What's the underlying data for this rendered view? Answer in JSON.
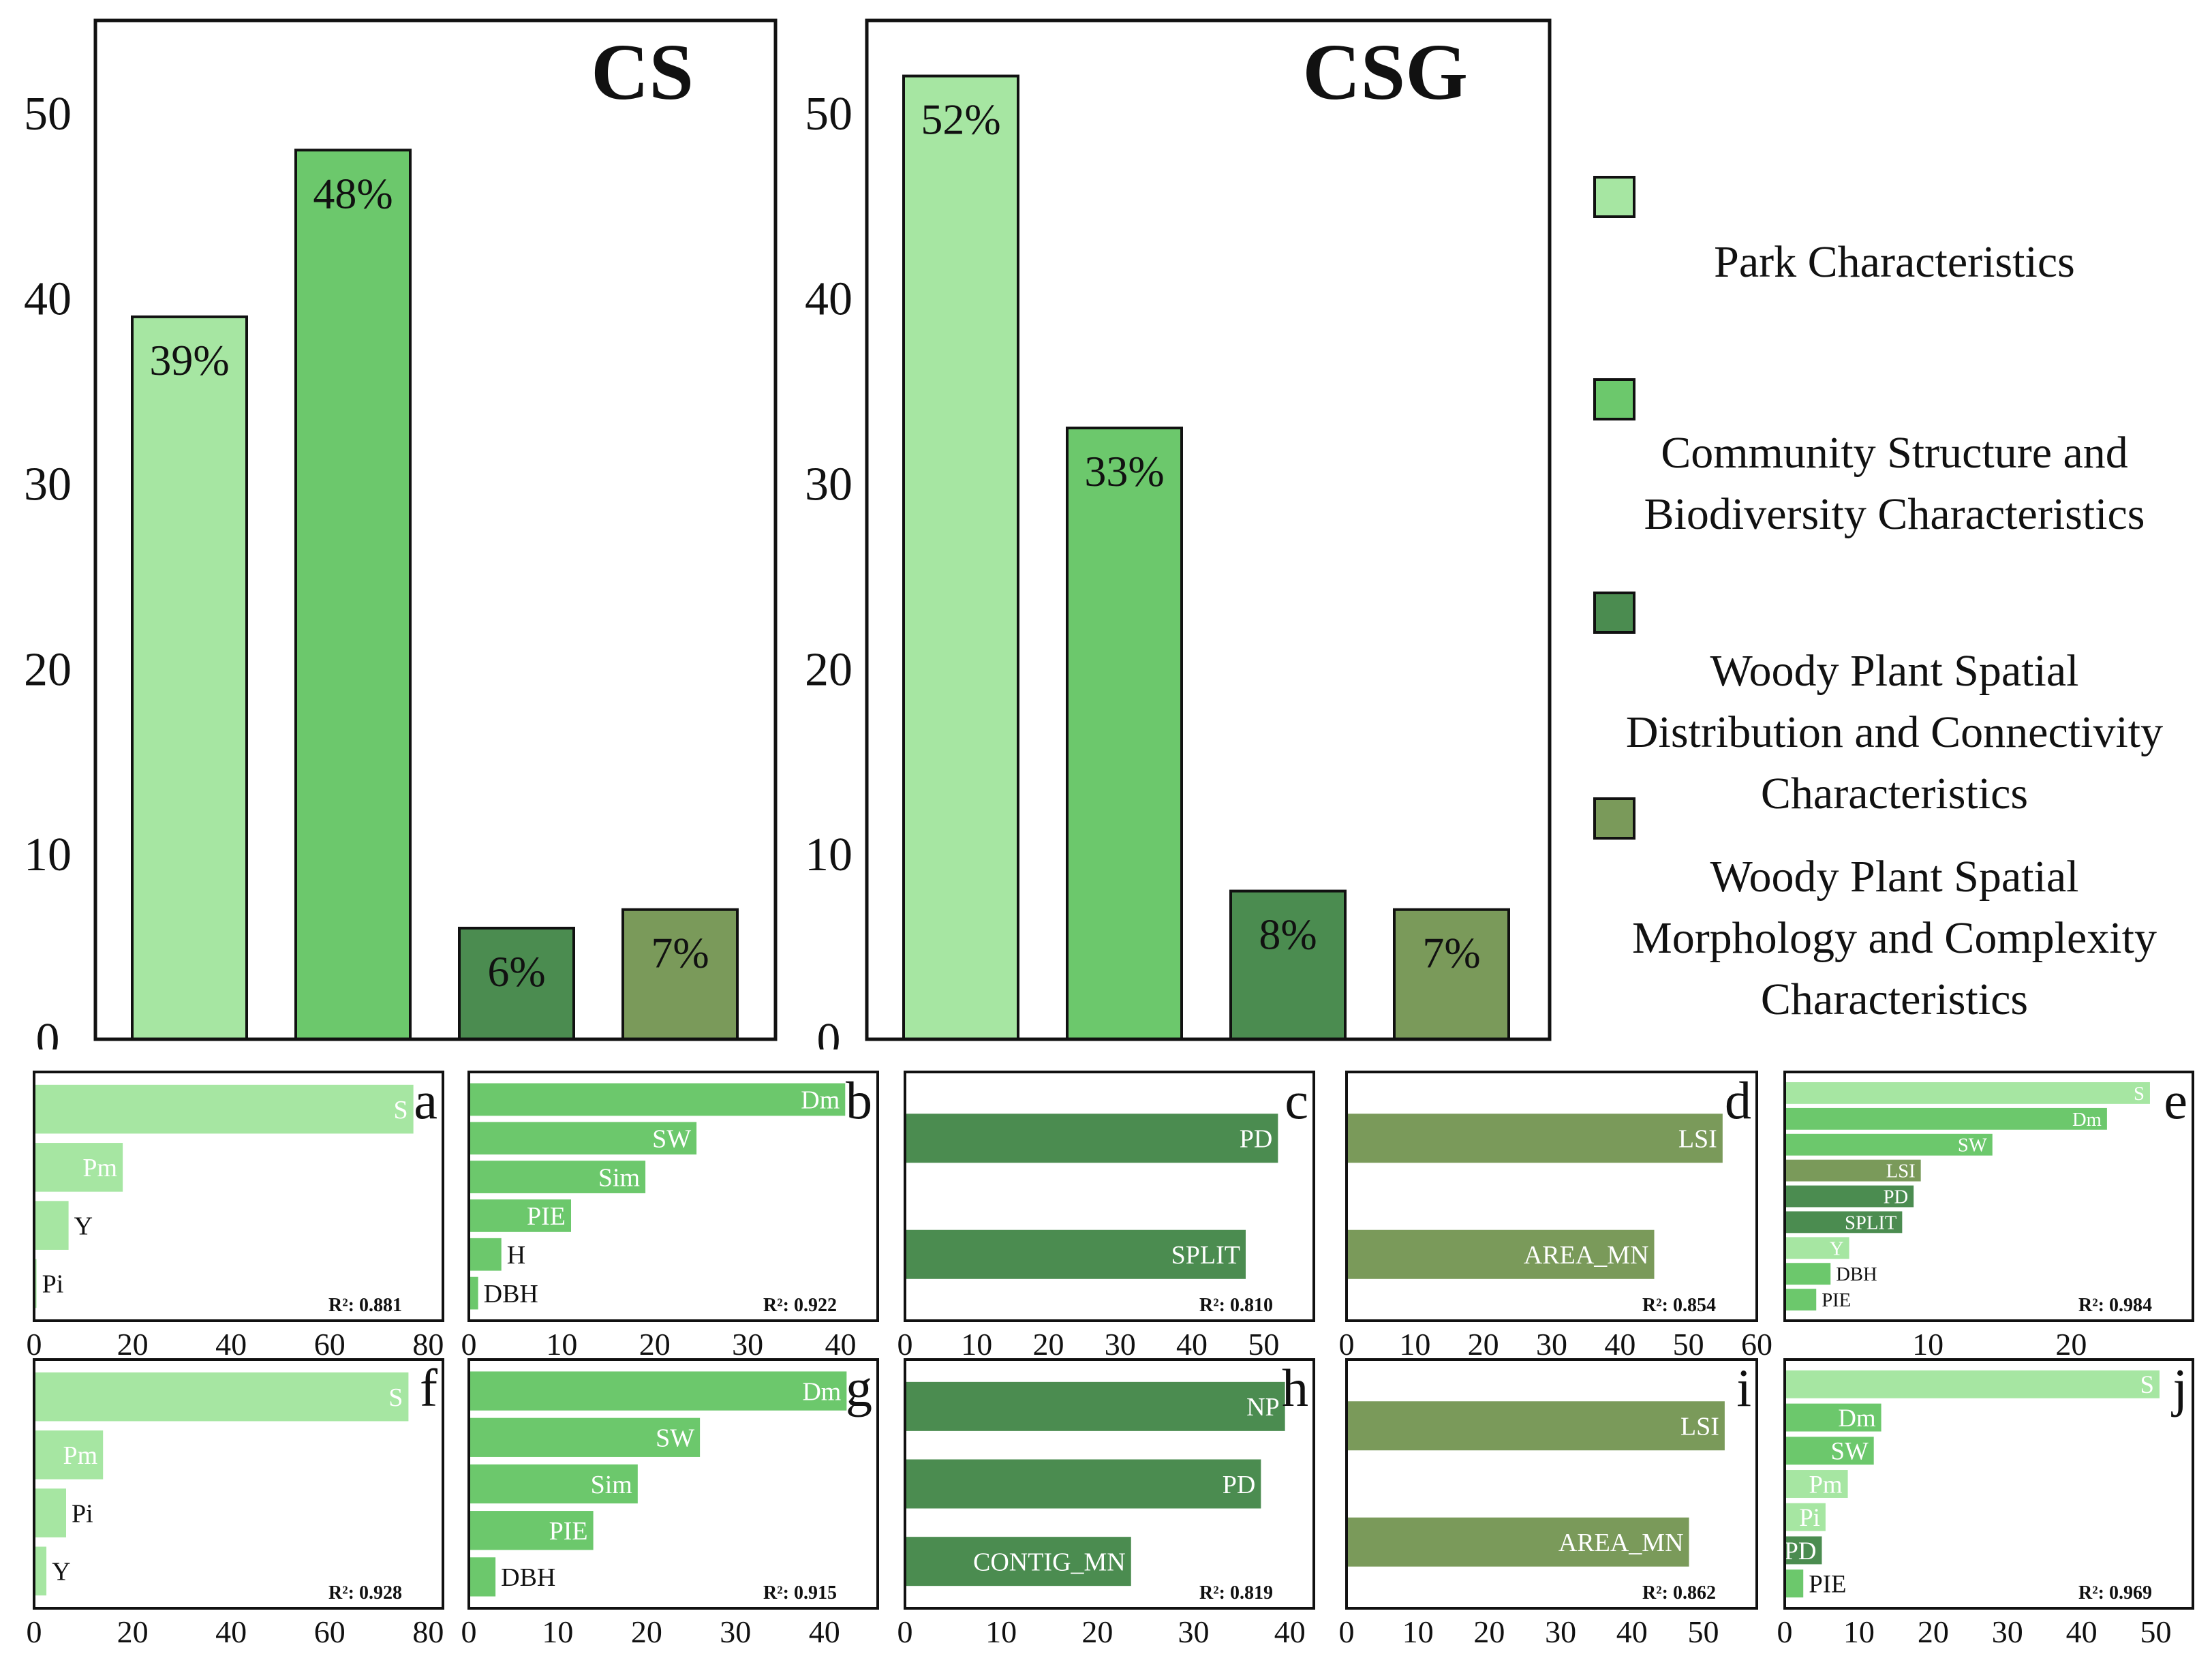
{
  "colors": {
    "park": "#a6e6a2",
    "community": "#6cc86c",
    "distribution": "#4b8c50",
    "morphology": "#7a9a5a",
    "axis": "#111111"
  },
  "legend": {
    "items": [
      {
        "label": "Park Characteristics",
        "color_key": "park"
      },
      {
        "label": "Community Structure and\nBiodiversity Characteristics",
        "color_key": "community"
      },
      {
        "label": "Woody Plant Spatial\nDistribution and Connectivity\nCharacteristics",
        "color_key": "distribution"
      },
      {
        "label": "Woody Plant Spatial\nMorphology and Complexity\nCharacteristics",
        "color_key": "morphology"
      }
    ]
  },
  "chart_data": [
    {
      "id": "cs",
      "type": "bar",
      "title": "CS",
      "categories": [
        "Park Characteristics",
        "Community Structure and Biodiversity Characteristics",
        "Woody Plant Spatial Distribution and Connectivity Characteristics",
        "Woody Plant Spatial Morphology and Complexity Characteristics"
      ],
      "values": [
        39,
        48,
        6,
        7
      ],
      "value_labels": [
        "39%",
        "48%",
        "6%",
        "7%"
      ],
      "colors": [
        "park",
        "community",
        "distribution",
        "morphology"
      ],
      "ylim": [
        0,
        55
      ],
      "yticks": [
        0,
        10,
        20,
        30,
        40,
        50
      ]
    },
    {
      "id": "csg",
      "type": "bar",
      "title": "CSG",
      "categories": [
        "Park Characteristics",
        "Community Structure and Biodiversity Characteristics",
        "Woody Plant Spatial Distribution and Connectivity Characteristics",
        "Woody Plant Spatial Morphology and Complexity Characteristics"
      ],
      "values": [
        52,
        33,
        8,
        7
      ],
      "value_labels": [
        "52%",
        "33%",
        "8%",
        "7%"
      ],
      "colors": [
        "park",
        "community",
        "distribution",
        "morphology"
      ],
      "ylim": [
        0,
        55
      ],
      "yticks": [
        0,
        10,
        20,
        30,
        40,
        50
      ]
    },
    {
      "id": "a",
      "type": "bar",
      "orientation": "horizontal",
      "letter": "a",
      "r2": "R²: 0.881",
      "xlim": [
        0,
        83
      ],
      "xticks": [
        0,
        20,
        40,
        60,
        80
      ],
      "bars": [
        {
          "label": "S",
          "value": 77,
          "color_key": "park",
          "label_pos": "inside"
        },
        {
          "label": "Pm",
          "value": 18,
          "color_key": "park",
          "label_pos": "inside"
        },
        {
          "label": "Y",
          "value": 7,
          "color_key": "park",
          "label_pos": "outside"
        },
        {
          "label": "Pi",
          "value": 0.5,
          "color_key": "park",
          "label_pos": "outside"
        }
      ]
    },
    {
      "id": "b",
      "type": "bar",
      "orientation": "horizontal",
      "letter": "b",
      "r2": "R²: 0.922",
      "xlim": [
        0,
        44
      ],
      "xticks": [
        0,
        10,
        20,
        30,
        40
      ],
      "bars": [
        {
          "label": "Dm",
          "value": 40.5,
          "color_key": "community",
          "label_pos": "inside"
        },
        {
          "label": "SW",
          "value": 24.5,
          "color_key": "community",
          "label_pos": "inside"
        },
        {
          "label": "Sim",
          "value": 19,
          "color_key": "community",
          "label_pos": "inside"
        },
        {
          "label": "PIE",
          "value": 11,
          "color_key": "community",
          "label_pos": "inside"
        },
        {
          "label": "H",
          "value": 3.5,
          "color_key": "community",
          "label_pos": "outside"
        },
        {
          "label": "DBH",
          "value": 1,
          "color_key": "community",
          "label_pos": "outside"
        }
      ]
    },
    {
      "id": "c",
      "type": "bar",
      "orientation": "horizontal",
      "letter": "c",
      "r2": "R²: 0.810",
      "xlim": [
        0,
        57
      ],
      "xticks": [
        0,
        10,
        20,
        30,
        40,
        50
      ],
      "bars": [
        {
          "label": "PD",
          "value": 52,
          "color_key": "distribution",
          "label_pos": "inside"
        },
        {
          "label": "SPLIT",
          "value": 47.5,
          "color_key": "distribution",
          "label_pos": "inside"
        }
      ]
    },
    {
      "id": "d",
      "type": "bar",
      "orientation": "horizontal",
      "letter": "d",
      "r2": "R²: 0.854",
      "xlim": [
        0,
        60
      ],
      "xticks": [
        0,
        10,
        20,
        30,
        40,
        50,
        60
      ],
      "bars": [
        {
          "label": "LSI",
          "value": 55,
          "color_key": "morphology",
          "label_pos": "inside"
        },
        {
          "label": "AREA_MN",
          "value": 45,
          "color_key": "morphology",
          "label_pos": "inside"
        }
      ]
    },
    {
      "id": "e",
      "type": "bar",
      "orientation": "horizontal",
      "letter": "e",
      "r2": "R²: 0.984",
      "xlim": [
        0,
        28.5
      ],
      "xticks": [
        10,
        20
      ],
      "bars": [
        {
          "label": "S",
          "value": 25.5,
          "color_key": "park",
          "label_pos": "inside"
        },
        {
          "label": "Dm",
          "value": 22.5,
          "color_key": "community",
          "label_pos": "inside"
        },
        {
          "label": "SW",
          "value": 14.5,
          "color_key": "community",
          "label_pos": "inside"
        },
        {
          "label": "LSI",
          "value": 9.5,
          "color_key": "morphology",
          "label_pos": "inside"
        },
        {
          "label": "PD",
          "value": 9,
          "color_key": "distribution",
          "label_pos": "inside"
        },
        {
          "label": "SPLIT",
          "value": 8.2,
          "color_key": "distribution",
          "label_pos": "inside"
        },
        {
          "label": "Y",
          "value": 4.5,
          "color_key": "park",
          "label_pos": "inside"
        },
        {
          "label": "DBH",
          "value": 3.2,
          "color_key": "community",
          "label_pos": "outside"
        },
        {
          "label": "PIE",
          "value": 2.2,
          "color_key": "community",
          "label_pos": "outside"
        }
      ]
    },
    {
      "id": "f",
      "type": "bar",
      "orientation": "horizontal",
      "letter": "f",
      "r2": "R²: 0.928",
      "xlim": [
        0,
        83
      ],
      "xticks": [
        0,
        20,
        40,
        60,
        80
      ],
      "bars": [
        {
          "label": "S",
          "value": 76,
          "color_key": "park",
          "label_pos": "inside"
        },
        {
          "label": "Pm",
          "value": 14,
          "color_key": "park",
          "label_pos": "inside"
        },
        {
          "label": "Pi",
          "value": 6.5,
          "color_key": "park",
          "label_pos": "outside"
        },
        {
          "label": "Y",
          "value": 2.5,
          "color_key": "park",
          "label_pos": "outside"
        }
      ]
    },
    {
      "id": "g",
      "type": "bar",
      "orientation": "horizontal",
      "letter": "g",
      "r2": "R²: 0.915",
      "xlim": [
        0,
        46
      ],
      "xticks": [
        0,
        10,
        20,
        30,
        40
      ],
      "bars": [
        {
          "label": "Dm",
          "value": 42.5,
          "color_key": "community",
          "label_pos": "inside"
        },
        {
          "label": "SW",
          "value": 26,
          "color_key": "community",
          "label_pos": "inside"
        },
        {
          "label": "Sim",
          "value": 19,
          "color_key": "community",
          "label_pos": "inside"
        },
        {
          "label": "PIE",
          "value": 14,
          "color_key": "community",
          "label_pos": "inside"
        },
        {
          "label": "DBH",
          "value": 3,
          "color_key": "community",
          "label_pos": "outside"
        }
      ]
    },
    {
      "id": "h",
      "type": "bar",
      "orientation": "horizontal",
      "letter": "h",
      "r2": "R²: 0.819",
      "xlim": [
        0,
        42.5
      ],
      "xticks": [
        0,
        10,
        20,
        30,
        40
      ],
      "bars": [
        {
          "label": "NP",
          "value": 39.5,
          "color_key": "distribution",
          "label_pos": "inside"
        },
        {
          "label": "PD",
          "value": 37,
          "color_key": "distribution",
          "label_pos": "inside"
        },
        {
          "label": "CONTIG_MN",
          "value": 23.5,
          "color_key": "distribution",
          "label_pos": "inside"
        }
      ]
    },
    {
      "id": "i",
      "type": "bar",
      "orientation": "horizontal",
      "letter": "i",
      "r2": "R²: 0.862",
      "xlim": [
        0,
        57.5
      ],
      "xticks": [
        0,
        10,
        20,
        30,
        40,
        50
      ],
      "bars": [
        {
          "label": "LSI",
          "value": 53,
          "color_key": "morphology",
          "label_pos": "inside"
        },
        {
          "label": "AREA_MN",
          "value": 48,
          "color_key": "morphology",
          "label_pos": "inside"
        }
      ]
    },
    {
      "id": "j",
      "type": "bar",
      "orientation": "horizontal",
      "letter": "j",
      "r2": "R²: 0.969",
      "xlim": [
        0,
        55
      ],
      "xticks": [
        0,
        10,
        20,
        30,
        40,
        50
      ],
      "bars": [
        {
          "label": "S",
          "value": 50.5,
          "color_key": "park",
          "label_pos": "inside"
        },
        {
          "label": "Dm",
          "value": 13,
          "color_key": "community",
          "label_pos": "inside"
        },
        {
          "label": "SW",
          "value": 12,
          "color_key": "community",
          "label_pos": "inside"
        },
        {
          "label": "Pm",
          "value": 8.5,
          "color_key": "park",
          "label_pos": "inside"
        },
        {
          "label": "Pi",
          "value": 5.5,
          "color_key": "park",
          "label_pos": "inside"
        },
        {
          "label": "PD",
          "value": 5,
          "color_key": "distribution",
          "label_pos": "inside"
        },
        {
          "label": "PIE",
          "value": 2.5,
          "color_key": "community",
          "label_pos": "outside"
        }
      ]
    }
  ]
}
